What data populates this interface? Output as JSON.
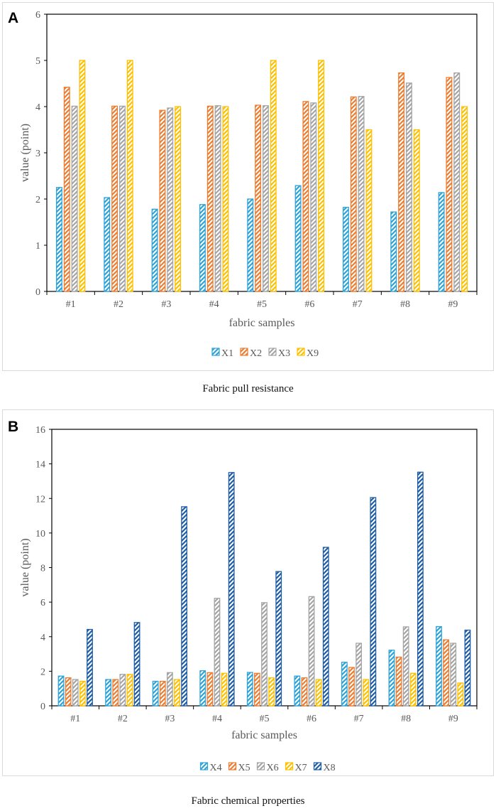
{
  "chart_data": [
    {
      "panel": "A",
      "type": "bar",
      "caption": "Fabric pull resistance",
      "xlabel": "fabric samples",
      "ylabel": "value (point)",
      "ylim": [
        0,
        6
      ],
      "yticks": [
        "0",
        "1",
        "2",
        "3",
        "4",
        "5",
        "6"
      ],
      "grid": false,
      "legend_position": "bottom",
      "pattern": "diagonal-hatch",
      "categories": [
        "#1",
        "#2",
        "#3",
        "#4",
        "#5",
        "#6",
        "#7",
        "#8",
        "#9"
      ],
      "series": [
        {
          "name": "X1",
          "color": "#2ea3d9",
          "values": [
            2.25,
            2.03,
            1.78,
            1.88,
            2.0,
            2.29,
            1.82,
            1.72,
            2.14
          ]
        },
        {
          "name": "X2",
          "color": "#ed7d31",
          "values": [
            4.42,
            4.01,
            3.92,
            4.01,
            4.03,
            4.11,
            4.21,
            4.73,
            4.63
          ]
        },
        {
          "name": "X3",
          "color": "#a5a5a5",
          "values": [
            4.01,
            4.01,
            3.97,
            4.02,
            4.02,
            4.08,
            4.22,
            4.51,
            4.73
          ]
        },
        {
          "name": "X9",
          "color": "#ffc000",
          "values": [
            5.0,
            5.0,
            4.0,
            4.0,
            5.0,
            5.0,
            3.5,
            3.5,
            4.0
          ]
        }
      ]
    },
    {
      "panel": "B",
      "type": "bar",
      "caption": "Fabric chemical properties",
      "xlabel": "fabric samples",
      "ylabel": "value (point)",
      "ylim": [
        0,
        16
      ],
      "yticks": [
        "0",
        "2",
        "4",
        "6",
        "8",
        "10",
        "12",
        "14",
        "16"
      ],
      "grid": false,
      "legend_position": "bottom",
      "pattern": "diagonal-hatch",
      "categories": [
        "#1",
        "#2",
        "#3",
        "#4",
        "#5",
        "#6",
        "#7",
        "#8",
        "#9"
      ],
      "series": [
        {
          "name": "X4",
          "color": "#2ea3d9",
          "values": [
            1.72,
            1.52,
            1.42,
            2.03,
            1.93,
            1.72,
            2.52,
            3.22,
            4.58
          ]
        },
        {
          "name": "X5",
          "color": "#ed7d31",
          "values": [
            1.62,
            1.52,
            1.42,
            1.92,
            1.88,
            1.62,
            2.22,
            2.82,
            3.82
          ]
        },
        {
          "name": "X6",
          "color": "#a5a5a5",
          "values": [
            1.52,
            1.82,
            1.92,
            6.22,
            5.97,
            6.32,
            3.62,
            4.57,
            3.62
          ]
        },
        {
          "name": "X7",
          "color": "#ffc000",
          "values": [
            1.42,
            1.82,
            1.52,
            1.88,
            1.62,
            1.52,
            1.52,
            1.88,
            1.32
          ]
        },
        {
          "name": "X8",
          "color": "#1f5da6",
          "values": [
            4.42,
            4.82,
            11.52,
            13.5,
            7.77,
            9.17,
            12.05,
            13.52,
            4.38
          ]
        }
      ]
    }
  ],
  "panel_labels": {
    "a": "A",
    "b": "B"
  }
}
